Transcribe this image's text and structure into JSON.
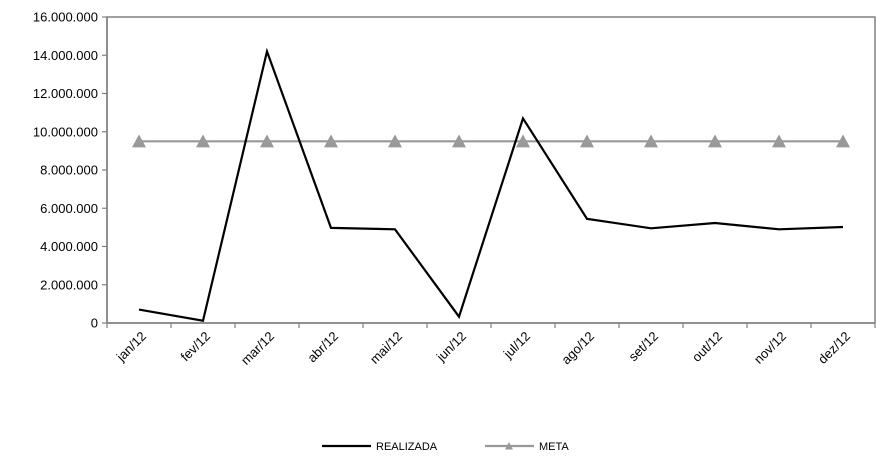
{
  "chart_data": {
    "type": "line",
    "categories": [
      "jan/12",
      "fev/12",
      "mar/12",
      "abr/12",
      "mai/12",
      "jun/12",
      "jul/12",
      "ago/12",
      "set/12",
      "out/12",
      "nov/12",
      "dez/12"
    ],
    "y_ticks": [
      "0",
      "2.000.000",
      "4.000.000",
      "6.000.000",
      "8.000.000",
      "10.000.000",
      "12.000.000",
      "14.000.000",
      "16.000.000"
    ],
    "ylim": [
      0,
      16000000
    ],
    "grid": false,
    "legend_position": "bottom",
    "series": [
      {
        "name": "REALIZADA",
        "color": "#000000",
        "marker": "none",
        "values": [
          700000,
          120000,
          14200000,
          4970000,
          4900000,
          330000,
          10700000,
          5450000,
          4950000,
          5230000,
          4900000,
          5020000
        ]
      },
      {
        "name": "META",
        "color": "#999999",
        "marker": "triangle",
        "values": [
          9500000,
          9500000,
          9500000,
          9500000,
          9500000,
          9500000,
          9500000,
          9500000,
          9500000,
          9500000,
          9500000,
          9500000
        ]
      }
    ]
  }
}
